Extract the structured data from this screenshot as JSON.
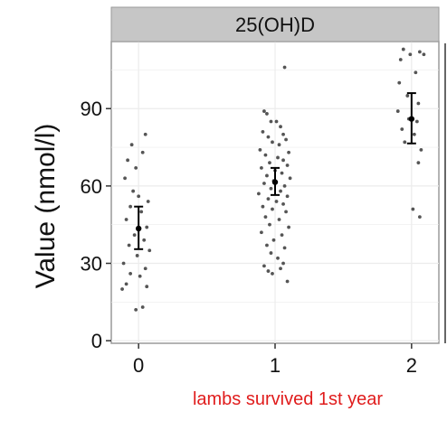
{
  "chart_data": {
    "type": "scatter",
    "facet_label": "25(OH)D",
    "xlabel": "lambs survived 1st year",
    "ylabel": "Value (nmol/l)",
    "x_ticks": [
      "0",
      "1",
      "2"
    ],
    "y_ticks": [
      0,
      30,
      60,
      90
    ],
    "ylim": [
      -1,
      116
    ],
    "xlim": [
      -0.2,
      2.2
    ],
    "grid": true,
    "colors": {
      "points": "#555555",
      "summary": "#000000",
      "strip": "#c6c6c6",
      "panel_border": "#9a9a9a",
      "grid": "#ececec"
    },
    "groups": [
      {
        "x": 0,
        "mean": 43.5,
        "ci": [
          35.5,
          52
        ],
        "points": [
          {
            "x": -0.05,
            "y": 76
          },
          {
            "x": 0.05,
            "y": 80
          },
          {
            "x": -0.08,
            "y": 70
          },
          {
            "x": -0.02,
            "y": 67
          },
          {
            "x": 0.03,
            "y": 73
          },
          {
            "x": -0.1,
            "y": 63
          },
          {
            "x": -0.04,
            "y": 58
          },
          {
            "x": 0.0,
            "y": 56
          },
          {
            "x": 0.07,
            "y": 54
          },
          {
            "x": -0.06,
            "y": 52
          },
          {
            "x": 0.02,
            "y": 50
          },
          {
            "x": -0.09,
            "y": 47
          },
          {
            "x": 0.06,
            "y": 44
          },
          {
            "x": -0.03,
            "y": 41
          },
          {
            "x": 0.04,
            "y": 39
          },
          {
            "x": -0.07,
            "y": 37
          },
          {
            "x": 0.08,
            "y": 35
          },
          {
            "x": -0.01,
            "y": 33
          },
          {
            "x": -0.11,
            "y": 30
          },
          {
            "x": 0.05,
            "y": 28
          },
          {
            "x": -0.06,
            "y": 26
          },
          {
            "x": 0.01,
            "y": 25
          },
          {
            "x": -0.09,
            "y": 22
          },
          {
            "x": 0.06,
            "y": 21
          },
          {
            "x": -0.12,
            "y": 20
          },
          {
            "x": -0.02,
            "y": 12
          },
          {
            "x": 0.03,
            "y": 13
          }
        ]
      },
      {
        "x": 1,
        "mean": 61.5,
        "ci": [
          56.5,
          67
        ],
        "points": [
          {
            "x": 0.07,
            "y": 106
          },
          {
            "x": -0.08,
            "y": 89
          },
          {
            "x": -0.06,
            "y": 88
          },
          {
            "x": -0.03,
            "y": 85
          },
          {
            "x": 0.01,
            "y": 85
          },
          {
            "x": 0.04,
            "y": 83
          },
          {
            "x": -0.09,
            "y": 81
          },
          {
            "x": 0.06,
            "y": 80
          },
          {
            "x": -0.05,
            "y": 79
          },
          {
            "x": 0.08,
            "y": 78
          },
          {
            "x": -0.02,
            "y": 77
          },
          {
            "x": 0.03,
            "y": 76
          },
          {
            "x": -0.11,
            "y": 74
          },
          {
            "x": 0.1,
            "y": 73
          },
          {
            "x": -0.07,
            "y": 72
          },
          {
            "x": 0.02,
            "y": 71
          },
          {
            "x": 0.06,
            "y": 70
          },
          {
            "x": -0.04,
            "y": 69
          },
          {
            "x": 0.09,
            "y": 68
          },
          {
            "x": -0.1,
            "y": 67
          },
          {
            "x": 0.0,
            "y": 66
          },
          {
            "x": 0.05,
            "y": 65
          },
          {
            "x": -0.06,
            "y": 64
          },
          {
            "x": 0.11,
            "y": 63
          },
          {
            "x": -0.01,
            "y": 62
          },
          {
            "x": -0.08,
            "y": 61
          },
          {
            "x": 0.07,
            "y": 60
          },
          {
            "x": -0.03,
            "y": 59
          },
          {
            "x": 0.04,
            "y": 58
          },
          {
            "x": -0.12,
            "y": 57
          },
          {
            "x": 0.09,
            "y": 56
          },
          {
            "x": -0.05,
            "y": 55
          },
          {
            "x": 0.01,
            "y": 54
          },
          {
            "x": 0.06,
            "y": 53
          },
          {
            "x": -0.09,
            "y": 52
          },
          {
            "x": -0.02,
            "y": 51
          },
          {
            "x": 0.08,
            "y": 50
          },
          {
            "x": -0.07,
            "y": 48
          },
          {
            "x": 0.03,
            "y": 47
          },
          {
            "x": -0.04,
            "y": 45
          },
          {
            "x": 0.1,
            "y": 44
          },
          {
            "x": -0.1,
            "y": 42
          },
          {
            "x": 0.05,
            "y": 41
          },
          {
            "x": -0.01,
            "y": 39
          },
          {
            "x": -0.06,
            "y": 37
          },
          {
            "x": 0.07,
            "y": 36
          },
          {
            "x": -0.03,
            "y": 34
          },
          {
            "x": 0.02,
            "y": 32
          },
          {
            "x": 0.06,
            "y": 30
          },
          {
            "x": -0.08,
            "y": 29
          },
          {
            "x": 0.04,
            "y": 28
          },
          {
            "x": -0.05,
            "y": 27
          },
          {
            "x": -0.02,
            "y": 26
          },
          {
            "x": 0.09,
            "y": 23
          }
        ]
      },
      {
        "x": 2,
        "mean": 86,
        "ci": [
          76.5,
          96
        ],
        "points": [
          {
            "x": -0.06,
            "y": 113
          },
          {
            "x": 0.06,
            "y": 112
          },
          {
            "x": -0.01,
            "y": 111
          },
          {
            "x": 0.09,
            "y": 111
          },
          {
            "x": -0.08,
            "y": 109
          },
          {
            "x": 0.03,
            "y": 104
          },
          {
            "x": -0.09,
            "y": 100
          },
          {
            "x": -0.03,
            "y": 95
          },
          {
            "x": 0.05,
            "y": 92
          },
          {
            "x": -0.1,
            "y": 89
          },
          {
            "x": -0.02,
            "y": 86
          },
          {
            "x": 0.04,
            "y": 85
          },
          {
            "x": -0.07,
            "y": 82
          },
          {
            "x": 0.02,
            "y": 80
          },
          {
            "x": -0.05,
            "y": 77
          },
          {
            "x": 0.07,
            "y": 74
          },
          {
            "x": 0.05,
            "y": 69
          },
          {
            "x": 0.01,
            "y": 51
          },
          {
            "x": 0.06,
            "y": 48
          }
        ]
      }
    ]
  }
}
